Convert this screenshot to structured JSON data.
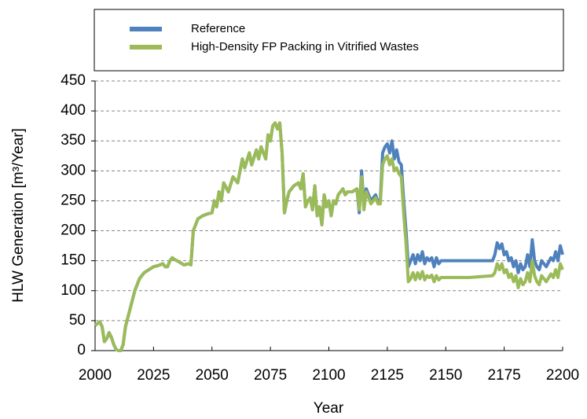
{
  "chart_data": {
    "type": "line",
    "xlabel": "Year",
    "ylabel": "HLW Generation [m³/Year]",
    "x": [
      2000,
      2001,
      2002,
      2003,
      2004,
      2005,
      2006,
      2007,
      2008,
      2009,
      2010,
      2011,
      2012,
      2013,
      2015,
      2017,
      2019,
      2021,
      2023,
      2025,
      2027,
      2029,
      2030,
      2031,
      2032,
      2033,
      2034,
      2036,
      2038,
      2040,
      2041,
      2042,
      2044,
      2046,
      2048,
      2050,
      2051,
      2052,
      2053,
      2054,
      2055,
      2057,
      2059,
      2061,
      2063,
      2064,
      2066,
      2067,
      2069,
      2070,
      2071,
      2073,
      2074,
      2075,
      2076,
      2077,
      2078,
      2079,
      2080,
      2081,
      2082,
      2083,
      2085,
      2087,
      2088,
      2089,
      2090,
      2091,
      2092,
      2093,
      2094,
      2095,
      2096,
      2097,
      2098,
      2099,
      2100,
      2101,
      2102,
      2103,
      2104,
      2106,
      2107,
      2108,
      2110,
      2112,
      2113,
      2114,
      2115,
      2116,
      2118,
      2119,
      2120,
      2121,
      2122,
      2123,
      2124,
      2125,
      2126,
      2127,
      2128,
      2129,
      2130,
      2131,
      2132,
      2133,
      2134,
      2135,
      2136,
      2137,
      2138,
      2139,
      2140,
      2141,
      2142,
      2143,
      2144,
      2145,
      2146,
      2147,
      2148,
      2150,
      2160,
      2170,
      2171,
      2172,
      2173,
      2174,
      2175,
      2176,
      2177,
      2178,
      2179,
      2180,
      2181,
      2182,
      2183,
      2184,
      2185,
      2186,
      2187,
      2188,
      2189,
      2190,
      2191,
      2193,
      2195,
      2196,
      2197,
      2198,
      2199,
      2200
    ],
    "series": [
      {
        "name": "Reference",
        "color": "#4f81bd",
        "values": [
          42,
          45,
          48,
          40,
          15,
          20,
          30,
          22,
          10,
          2,
          0,
          0,
          10,
          40,
          70,
          100,
          120,
          130,
          135,
          140,
          142,
          145,
          140,
          140,
          150,
          155,
          152,
          148,
          143,
          145,
          143,
          200,
          220,
          225,
          228,
          230,
          250,
          240,
          265,
          250,
          280,
          265,
          290,
          280,
          320,
          305,
          330,
          310,
          335,
          320,
          340,
          320,
          360,
          350,
          375,
          380,
          370,
          380,
          330,
          230,
          250,
          265,
          275,
          280,
          270,
          295,
          240,
          250,
          255,
          235,
          275,
          225,
          240,
          210,
          260,
          240,
          250,
          225,
          250,
          245,
          260,
          270,
          260,
          265,
          265,
          270,
          230,
          300,
          240,
          270,
          250,
          255,
          260,
          248,
          250,
          330,
          340,
          345,
          330,
          350,
          320,
          335,
          315,
          310,
          250,
          200,
          140,
          150,
          160,
          145,
          160,
          150,
          165,
          145,
          155,
          150,
          155,
          140,
          155,
          145,
          150,
          150,
          150,
          150,
          160,
          180,
          170,
          178,
          160,
          165,
          150,
          155,
          140,
          150,
          130,
          145,
          135,
          140,
          160,
          140,
          185,
          150,
          140,
          135,
          150,
          140,
          155,
          150,
          165,
          150,
          175,
          160
        ]
      },
      {
        "name": "High-Density FP Packing in Vitrified Wastes",
        "color": "#9bbb59",
        "values": [
          42,
          45,
          48,
          40,
          15,
          20,
          30,
          22,
          10,
          2,
          0,
          0,
          10,
          40,
          70,
          100,
          120,
          130,
          135,
          140,
          142,
          145,
          140,
          140,
          150,
          155,
          152,
          148,
          143,
          145,
          143,
          200,
          220,
          225,
          228,
          230,
          250,
          240,
          265,
          250,
          280,
          265,
          290,
          280,
          320,
          305,
          330,
          310,
          335,
          320,
          340,
          320,
          360,
          350,
          375,
          380,
          370,
          380,
          330,
          230,
          250,
          265,
          275,
          280,
          270,
          295,
          240,
          250,
          255,
          235,
          275,
          225,
          240,
          210,
          260,
          240,
          250,
          225,
          250,
          245,
          260,
          270,
          260,
          265,
          265,
          270,
          235,
          290,
          235,
          265,
          245,
          250,
          255,
          245,
          245,
          310,
          320,
          325,
          310,
          320,
          300,
          305,
          295,
          290,
          230,
          180,
          115,
          120,
          130,
          118,
          130,
          120,
          132,
          118,
          125,
          122,
          126,
          115,
          125,
          118,
          122,
          122,
          122,
          125,
          130,
          145,
          135,
          145,
          130,
          135,
          122,
          128,
          115,
          125,
          105,
          120,
          110,
          115,
          130,
          115,
          150,
          125,
          115,
          110,
          125,
          115,
          128,
          122,
          135,
          122,
          145,
          135
        ]
      }
    ],
    "xlim": [
      2000,
      2200
    ],
    "xticks": [
      2000,
      2025,
      2050,
      2075,
      2100,
      2125,
      2150,
      2175,
      2200
    ],
    "ylim": [
      0,
      450
    ],
    "yticks": [
      0,
      50,
      100,
      150,
      200,
      250,
      300,
      350,
      400,
      450
    ],
    "grid": true,
    "legend": "top"
  }
}
